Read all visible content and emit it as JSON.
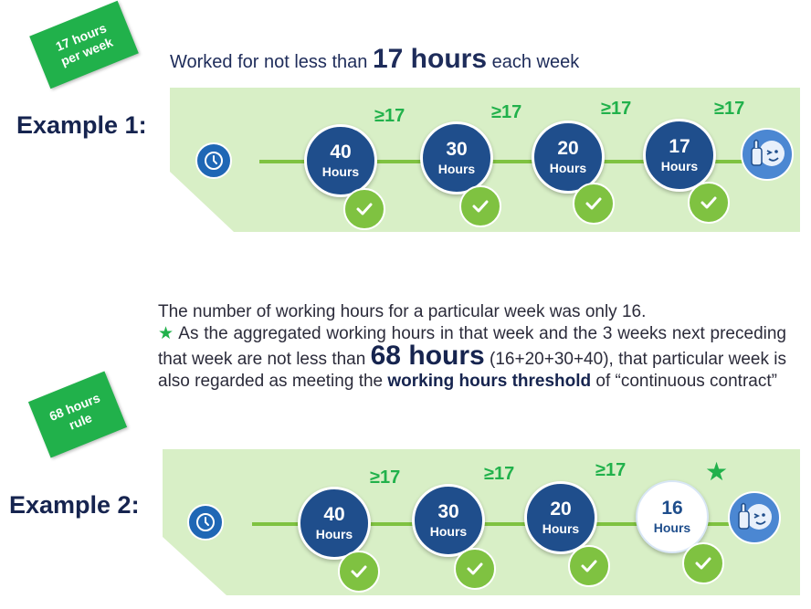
{
  "tag1": {
    "line1": "17 hours",
    "line2": "per week"
  },
  "tag2": {
    "line1": "68 hours",
    "line2": "rule"
  },
  "worked": {
    "pre": "Worked for not less than ",
    "big": "17 hours",
    "post": " each week"
  },
  "example1": {
    "label": "Example 1:",
    "thresholds": [
      "≥17",
      "≥17",
      "≥17",
      "≥17"
    ],
    "weeks": [
      {
        "value": "40",
        "unit": "Hours"
      },
      {
        "value": "30",
        "unit": "Hours"
      },
      {
        "value": "20",
        "unit": "Hours"
      },
      {
        "value": "17",
        "unit": "Hours"
      }
    ]
  },
  "description": {
    "line1": "The number of working hours for a particular week was only 16.",
    "star": "★",
    "part2": " As the aggregated working hours in that week and the 3 weeks next preceding that week are not less than ",
    "big": "68 hours",
    "part3": " (16+20+30+40), that particular week is also regarded as meeting the ",
    "bold": "working hours threshold",
    "part4": " of “continuous contract”"
  },
  "example2": {
    "label": "Example 2:",
    "thresholds": [
      "≥17",
      "≥17",
      "≥17"
    ],
    "star": "★",
    "weeks": [
      {
        "value": "40",
        "unit": "Hours"
      },
      {
        "value": "30",
        "unit": "Hours"
      },
      {
        "value": "20",
        "unit": "Hours"
      },
      {
        "value": "16",
        "unit": "Hours"
      }
    ]
  },
  "colors": {
    "tag_green": "#21b14b",
    "panel_green": "#d8efc6",
    "line_green": "#7fc241",
    "circle_blue": "#1f4e8c",
    "check_green": "#7fc241",
    "label_navy": "#16244f"
  },
  "icons": {
    "start": "clock-icon",
    "end": "thumbs-up-face-icon",
    "done": "check-icon"
  }
}
